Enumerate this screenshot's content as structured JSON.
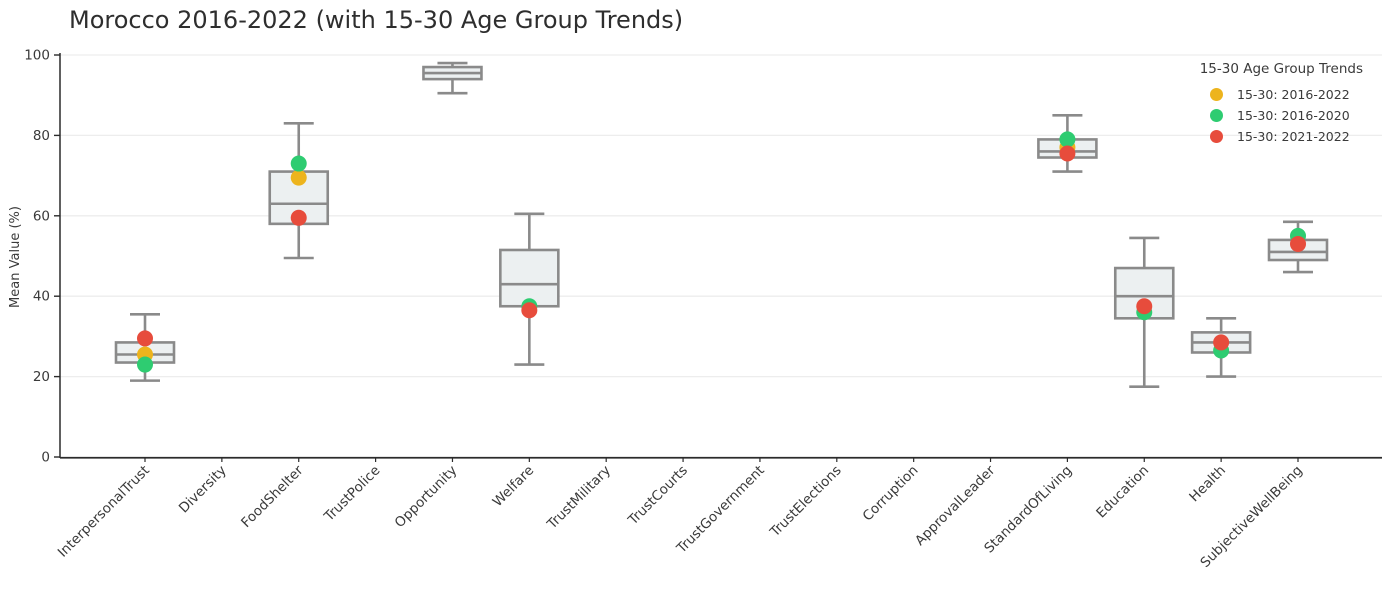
{
  "chart_data": {
    "type": "box",
    "title": "Morocco 2016-2022 (with 15-30 Age Group Trends)",
    "xlabel": "",
    "ylabel": "Mean Value (%)",
    "ylim": [
      0,
      100
    ],
    "yticks": [
      0,
      20,
      40,
      60,
      80,
      100
    ],
    "grid": true,
    "legend": {
      "title": "15-30 Age Group Trends",
      "position": "top-right"
    },
    "colors": {
      "box_fill": "#ECF0F1",
      "box_stroke": "#8A8A8A",
      "grid": "#EDEDED",
      "axis": "#2B2B2B",
      "text": "#3A3A3A"
    },
    "categories": [
      "InterpersonalTrust",
      "Diversity",
      "FoodShelter",
      "TrustPolice",
      "Opportunity",
      "Welfare",
      "TrustMilitary",
      "TrustCourts",
      "TrustGovernment",
      "TrustElections",
      "Corruption",
      "ApprovalLeader",
      "StandardOfLiving",
      "Education",
      "Health",
      "SubjectiveWellBeing"
    ],
    "boxes": [
      {
        "low": 19,
        "q1": 23.5,
        "median": 25.5,
        "q3": 28.5,
        "high": 35.5
      },
      null,
      {
        "low": 49.5,
        "q1": 58,
        "median": 63,
        "q3": 71,
        "high": 83
      },
      null,
      {
        "low": 90.5,
        "q1": 94,
        "median": 95.5,
        "q3": 97,
        "high": 98
      },
      {
        "low": 23,
        "q1": 37.5,
        "median": 43,
        "q3": 51.5,
        "high": 60.5
      },
      null,
      null,
      null,
      null,
      null,
      null,
      {
        "low": 71,
        "q1": 74.5,
        "median": 76,
        "q3": 79,
        "high": 85
      },
      {
        "low": 17.5,
        "q1": 34.5,
        "median": 40,
        "q3": 47,
        "high": 54.5
      },
      {
        "low": 20,
        "q1": 26,
        "median": 28.5,
        "q3": 31,
        "high": 34.5
      },
      {
        "low": 46,
        "q1": 49,
        "median": 51,
        "q3": 54,
        "high": 58.5
      }
    ],
    "series": [
      {
        "name": "15-30: 2016-2022",
        "color": "#EDB41D",
        "values": [
          25.5,
          null,
          69.5,
          null,
          null,
          null,
          null,
          null,
          null,
          null,
          null,
          null,
          77,
          null,
          null,
          null
        ]
      },
      {
        "name": "15-30: 2016-2020",
        "color": "#2ECC71",
        "values": [
          23,
          null,
          73,
          null,
          null,
          37.5,
          null,
          null,
          null,
          null,
          null,
          null,
          79,
          36,
          26.5,
          55
        ]
      },
      {
        "name": "15-30: 2021-2022",
        "color": "#E74C3C",
        "values": [
          29.5,
          null,
          59.5,
          null,
          null,
          36.5,
          null,
          null,
          null,
          null,
          null,
          null,
          75.5,
          37.5,
          28.5,
          53
        ]
      }
    ]
  }
}
